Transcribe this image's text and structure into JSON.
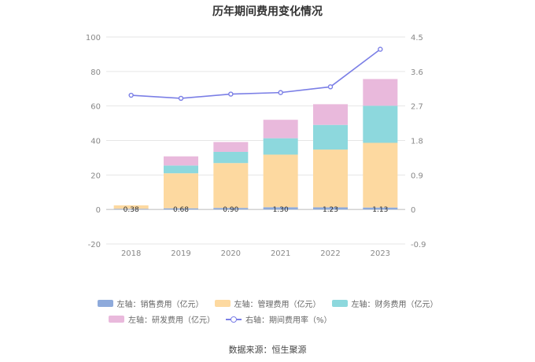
{
  "title": "历年期间费用变化情况",
  "source": "数据来源：恒生聚源",
  "colors": {
    "sales": "#8eaadb",
    "admin": "#fdd9a0",
    "finance": "#8dd8dd",
    "rnd": "#e9b9dc",
    "ratio_line": "#7b7fe6",
    "axis_text": "#888888",
    "grid": "#e6e6e6"
  },
  "legend": [
    {
      "key": "sales",
      "label": "左轴：销售费用（亿元）",
      "type": "bar"
    },
    {
      "key": "admin",
      "label": "左轴：管理费用（亿元）",
      "type": "bar"
    },
    {
      "key": "finance",
      "label": "左轴：财务费用（亿元）",
      "type": "bar"
    },
    {
      "key": "rnd",
      "label": "左轴：研发费用（亿元）",
      "type": "bar"
    },
    {
      "key": "ratio",
      "label": "右轴：期间费用率（%）",
      "type": "line"
    }
  ],
  "chart_data": {
    "type": "bar",
    "stacked": true,
    "categories": [
      "2018",
      "2019",
      "2020",
      "2021",
      "2022",
      "2023"
    ],
    "series": [
      {
        "name": "左轴：销售费用（亿元）",
        "key": "sales",
        "axis": "left",
        "values": [
          0.38,
          0.68,
          0.9,
          1.3,
          1.23,
          1.13
        ],
        "labels": [
          "0.38",
          "0.68",
          "0.90",
          "1.30",
          "1.23",
          "1.13"
        ]
      },
      {
        "name": "左轴：管理费用（亿元）",
        "key": "admin",
        "axis": "left",
        "values": [
          2.0,
          20.3,
          26.0,
          30.5,
          33.5,
          37.5
        ]
      },
      {
        "name": "左轴：财务费用（亿元）",
        "key": "finance",
        "axis": "left",
        "values": [
          0.0,
          4.5,
          6.5,
          9.5,
          14.3,
          21.5
        ]
      },
      {
        "name": "左轴：研发费用（亿元）",
        "key": "rnd",
        "axis": "left",
        "values": [
          0.0,
          5.3,
          5.7,
          10.7,
          12.0,
          15.5
        ]
      },
      {
        "name": "右轴：期间费用率（%）",
        "key": "ratio",
        "axis": "right",
        "chart": "line",
        "values": [
          2.98,
          2.9,
          3.01,
          3.05,
          3.2,
          4.18
        ]
      }
    ],
    "left_axis": {
      "ylim": [
        -20,
        100
      ],
      "ticks": [
        -20,
        0,
        20,
        40,
        60,
        80,
        100
      ]
    },
    "right_axis": {
      "ylim": [
        -0.9,
        4.5
      ],
      "ticks": [
        -0.9,
        0,
        0.9,
        1.8,
        2.7,
        3.6,
        4.5
      ],
      "tick_labels": [
        "-0.9",
        "0",
        "0.9",
        "1.8",
        "2.7",
        "3.6",
        "4.5"
      ]
    },
    "grid": true,
    "legend_position": "bottom"
  }
}
